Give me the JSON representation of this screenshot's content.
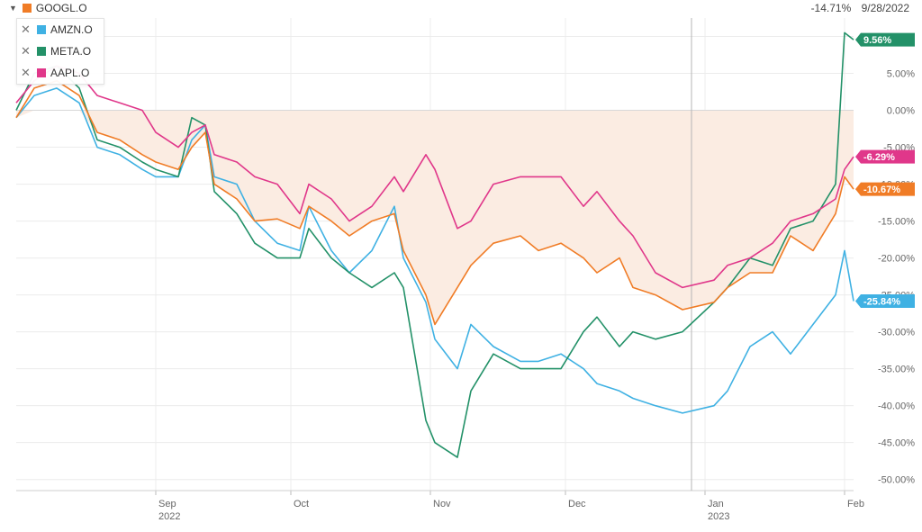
{
  "header": {
    "main_series": {
      "label": "GOOGL.O",
      "color": "#f07c26",
      "icon": "chevron-down-icon"
    },
    "readout": {
      "change": "-14.71%",
      "date": "9/28/2022"
    }
  },
  "legend": [
    {
      "label": "AMZN.O",
      "color": "#3fb1e3",
      "icon": "close-icon"
    },
    {
      "label": "META.O",
      "color": "#239168",
      "icon": "close-icon"
    },
    {
      "label": "AAPL.O",
      "color": "#e0378a",
      "icon": "close-icon"
    }
  ],
  "chart_data": {
    "type": "line",
    "x_axis": {
      "range": [
        "2022-08-01",
        "2023-02-03"
      ],
      "ticks": [
        {
          "date": "2022-09-01",
          "label": "Sep",
          "sublabel": "2022"
        },
        {
          "date": "2022-10-01",
          "label": "Oct",
          "sublabel": ""
        },
        {
          "date": "2022-11-01",
          "label": "Nov",
          "sublabel": ""
        },
        {
          "date": "2022-12-01",
          "label": "Dec",
          "sublabel": ""
        },
        {
          "date": "2023-01-01",
          "label": "Jan",
          "sublabel": "2023"
        },
        {
          "date": "2023-02-01",
          "label": "Feb",
          "sublabel": ""
        }
      ]
    },
    "y_axis": {
      "unit": "%",
      "range": [
        -51.5,
        12.5
      ],
      "ticks": [
        10,
        5,
        0,
        -5,
        -10,
        -15,
        -20,
        -25,
        -30,
        -35,
        -40,
        -45,
        -50
      ],
      "tick_labels": [
        "10.00%",
        "5.00%",
        "0.00%",
        "-5.00%",
        "-10.00%",
        "-15.00%",
        "-20.00%",
        "-25.00%",
        "-30.00%",
        "-35.00%",
        "-40.00%",
        "-45.00%",
        "-50.00%"
      ],
      "position": "right"
    },
    "grid": true,
    "baseline_fill": {
      "series": "GOOGL.O",
      "color": "#fbece2"
    },
    "series": [
      {
        "name": "GOOGL.O",
        "color": "#f07c26",
        "end_label": "-10.67%",
        "points": [
          [
            "2022-08-01",
            -1
          ],
          [
            "2022-08-05",
            3
          ],
          [
            "2022-08-10",
            4
          ],
          [
            "2022-08-15",
            2
          ],
          [
            "2022-08-19",
            -3
          ],
          [
            "2022-08-24",
            -4
          ],
          [
            "2022-08-29",
            -6
          ],
          [
            "2022-09-01",
            -7
          ],
          [
            "2022-09-06",
            -8
          ],
          [
            "2022-09-09",
            -5
          ],
          [
            "2022-09-12",
            -3
          ],
          [
            "2022-09-14",
            -10
          ],
          [
            "2022-09-19",
            -12
          ],
          [
            "2022-09-23",
            -15
          ],
          [
            "2022-09-28",
            -14.71
          ],
          [
            "2022-10-03",
            -16
          ],
          [
            "2022-10-05",
            -13
          ],
          [
            "2022-10-10",
            -15
          ],
          [
            "2022-10-14",
            -17
          ],
          [
            "2022-10-19",
            -15
          ],
          [
            "2022-10-24",
            -14
          ],
          [
            "2022-10-26",
            -19
          ],
          [
            "2022-10-31",
            -25
          ],
          [
            "2022-11-02",
            -29
          ],
          [
            "2022-11-07",
            -24
          ],
          [
            "2022-11-10",
            -21
          ],
          [
            "2022-11-15",
            -18
          ],
          [
            "2022-11-21",
            -17
          ],
          [
            "2022-11-25",
            -19
          ],
          [
            "2022-11-30",
            -18
          ],
          [
            "2022-12-05",
            -20
          ],
          [
            "2022-12-08",
            -22
          ],
          [
            "2022-12-13",
            -20
          ],
          [
            "2022-12-16",
            -24
          ],
          [
            "2022-12-21",
            -25
          ],
          [
            "2022-12-27",
            -27
          ],
          [
            "2023-01-03",
            -26
          ],
          [
            "2023-01-06",
            -24
          ],
          [
            "2023-01-11",
            -22
          ],
          [
            "2023-01-16",
            -22
          ],
          [
            "2023-01-20",
            -17
          ],
          [
            "2023-01-25",
            -19
          ],
          [
            "2023-01-30",
            -14
          ],
          [
            "2023-02-01",
            -9
          ],
          [
            "2023-02-03",
            -10.67
          ]
        ]
      },
      {
        "name": "AMZN.O",
        "color": "#3fb1e3",
        "end_label": "-25.84%",
        "points": [
          [
            "2022-08-01",
            -1
          ],
          [
            "2022-08-05",
            2
          ],
          [
            "2022-08-10",
            3
          ],
          [
            "2022-08-15",
            1
          ],
          [
            "2022-08-19",
            -5
          ],
          [
            "2022-08-24",
            -6
          ],
          [
            "2022-08-29",
            -8
          ],
          [
            "2022-09-01",
            -9
          ],
          [
            "2022-09-06",
            -9
          ],
          [
            "2022-09-09",
            -4
          ],
          [
            "2022-09-12",
            -2
          ],
          [
            "2022-09-14",
            -9
          ],
          [
            "2022-09-19",
            -10
          ],
          [
            "2022-09-23",
            -15
          ],
          [
            "2022-09-28",
            -18
          ],
          [
            "2022-10-03",
            -19
          ],
          [
            "2022-10-05",
            -13
          ],
          [
            "2022-10-10",
            -19
          ],
          [
            "2022-10-14",
            -22
          ],
          [
            "2022-10-19",
            -19
          ],
          [
            "2022-10-24",
            -13
          ],
          [
            "2022-10-26",
            -20
          ],
          [
            "2022-10-31",
            -26
          ],
          [
            "2022-11-02",
            -31
          ],
          [
            "2022-11-07",
            -35
          ],
          [
            "2022-11-10",
            -29
          ],
          [
            "2022-11-15",
            -32
          ],
          [
            "2022-11-21",
            -34
          ],
          [
            "2022-11-25",
            -34
          ],
          [
            "2022-11-30",
            -33
          ],
          [
            "2022-12-05",
            -35
          ],
          [
            "2022-12-08",
            -37
          ],
          [
            "2022-12-13",
            -38
          ],
          [
            "2022-12-16",
            -39
          ],
          [
            "2022-12-21",
            -40
          ],
          [
            "2022-12-27",
            -41
          ],
          [
            "2023-01-03",
            -40
          ],
          [
            "2023-01-06",
            -38
          ],
          [
            "2023-01-11",
            -32
          ],
          [
            "2023-01-16",
            -30
          ],
          [
            "2023-01-20",
            -33
          ],
          [
            "2023-01-25",
            -29
          ],
          [
            "2023-01-30",
            -25
          ],
          [
            "2023-02-01",
            -19
          ],
          [
            "2023-02-03",
            -25.84
          ]
        ]
      },
      {
        "name": "META.O",
        "color": "#239168",
        "end_label": "9.56%",
        "points": [
          [
            "2022-08-01",
            0
          ],
          [
            "2022-08-05",
            5
          ],
          [
            "2022-08-10",
            6
          ],
          [
            "2022-08-15",
            3
          ],
          [
            "2022-08-19",
            -4
          ],
          [
            "2022-08-24",
            -5
          ],
          [
            "2022-08-29",
            -7
          ],
          [
            "2022-09-01",
            -8
          ],
          [
            "2022-09-06",
            -9
          ],
          [
            "2022-09-09",
            -1
          ],
          [
            "2022-09-12",
            -2
          ],
          [
            "2022-09-14",
            -11
          ],
          [
            "2022-09-19",
            -14
          ],
          [
            "2022-09-23",
            -18
          ],
          [
            "2022-09-28",
            -20
          ],
          [
            "2022-10-03",
            -20
          ],
          [
            "2022-10-05",
            -16
          ],
          [
            "2022-10-10",
            -20
          ],
          [
            "2022-10-14",
            -22
          ],
          [
            "2022-10-19",
            -24
          ],
          [
            "2022-10-24",
            -22
          ],
          [
            "2022-10-26",
            -24
          ],
          [
            "2022-10-31",
            -42
          ],
          [
            "2022-11-02",
            -45
          ],
          [
            "2022-11-07",
            -47
          ],
          [
            "2022-11-10",
            -38
          ],
          [
            "2022-11-15",
            -33
          ],
          [
            "2022-11-21",
            -35
          ],
          [
            "2022-11-25",
            -35
          ],
          [
            "2022-11-30",
            -35
          ],
          [
            "2022-12-05",
            -30
          ],
          [
            "2022-12-08",
            -28
          ],
          [
            "2022-12-13",
            -32
          ],
          [
            "2022-12-16",
            -30
          ],
          [
            "2022-12-21",
            -31
          ],
          [
            "2022-12-27",
            -30
          ],
          [
            "2023-01-03",
            -26
          ],
          [
            "2023-01-06",
            -24
          ],
          [
            "2023-01-11",
            -20
          ],
          [
            "2023-01-16",
            -21
          ],
          [
            "2023-01-20",
            -16
          ],
          [
            "2023-01-25",
            -15
          ],
          [
            "2023-01-30",
            -10
          ],
          [
            "2023-02-01",
            10.5
          ],
          [
            "2023-02-03",
            9.56
          ]
        ]
      },
      {
        "name": "AAPL.O",
        "color": "#e0378a",
        "end_label": "-6.29%",
        "points": [
          [
            "2022-08-01",
            1
          ],
          [
            "2022-08-05",
            4
          ],
          [
            "2022-08-10",
            6
          ],
          [
            "2022-08-15",
            5
          ],
          [
            "2022-08-19",
            2
          ],
          [
            "2022-08-24",
            1
          ],
          [
            "2022-08-29",
            0
          ],
          [
            "2022-09-01",
            -3
          ],
          [
            "2022-09-06",
            -5
          ],
          [
            "2022-09-09",
            -3
          ],
          [
            "2022-09-12",
            -2
          ],
          [
            "2022-09-14",
            -6
          ],
          [
            "2022-09-19",
            -7
          ],
          [
            "2022-09-23",
            -9
          ],
          [
            "2022-09-28",
            -10
          ],
          [
            "2022-10-03",
            -14
          ],
          [
            "2022-10-05",
            -10
          ],
          [
            "2022-10-10",
            -12
          ],
          [
            "2022-10-14",
            -15
          ],
          [
            "2022-10-19",
            -13
          ],
          [
            "2022-10-24",
            -9
          ],
          [
            "2022-10-26",
            -11
          ],
          [
            "2022-10-31",
            -6
          ],
          [
            "2022-11-02",
            -8
          ],
          [
            "2022-11-07",
            -16
          ],
          [
            "2022-11-10",
            -15
          ],
          [
            "2022-11-15",
            -10
          ],
          [
            "2022-11-21",
            -9
          ],
          [
            "2022-11-25",
            -9
          ],
          [
            "2022-11-30",
            -9
          ],
          [
            "2022-12-05",
            -13
          ],
          [
            "2022-12-08",
            -11
          ],
          [
            "2022-12-13",
            -15
          ],
          [
            "2022-12-16",
            -17
          ],
          [
            "2022-12-21",
            -22
          ],
          [
            "2022-12-27",
            -24
          ],
          [
            "2023-01-03",
            -23
          ],
          [
            "2023-01-06",
            -21
          ],
          [
            "2023-01-11",
            -20
          ],
          [
            "2023-01-16",
            -18
          ],
          [
            "2023-01-20",
            -15
          ],
          [
            "2023-01-25",
            -14
          ],
          [
            "2023-01-30",
            -12
          ],
          [
            "2023-02-01",
            -8
          ],
          [
            "2023-02-03",
            -6.29
          ]
        ]
      }
    ],
    "crosshair_date": "2022-12-29"
  }
}
